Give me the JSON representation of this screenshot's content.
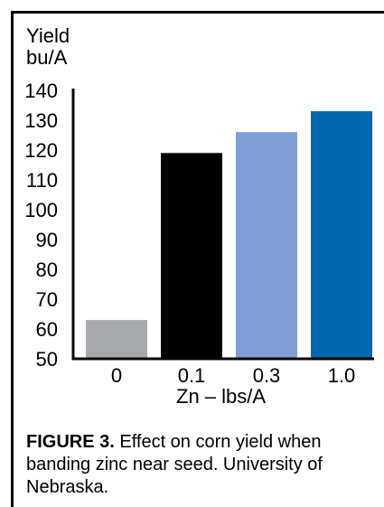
{
  "chart_data": {
    "type": "bar",
    "categories": [
      "0",
      "0.1",
      "0.3",
      "1.0"
    ],
    "values": [
      63,
      119,
      126,
      133
    ],
    "colors": [
      "#a7a9ac",
      "#000000",
      "#7f9fd6",
      "#0067b1"
    ],
    "ylabel": "Yield bu/A",
    "ylabel_lines": [
      "Yield",
      "bu/A"
    ],
    "xlabel": "Zn – lbs/A",
    "ylim": [
      50,
      140
    ],
    "yticks": [
      140,
      130,
      120,
      110,
      100,
      90,
      80,
      70,
      60,
      50
    ],
    "ytick_labels": [
      "140",
      "130",
      "120",
      "110",
      "100",
      "90",
      "80",
      "70",
      "60",
      "50"
    ],
    "grid": false
  },
  "caption": {
    "label": "FIGURE 3.",
    "line1_text": " Effect on corn yield when",
    "line2": "banding zinc near seed. University of",
    "line3": "Nebraska."
  }
}
